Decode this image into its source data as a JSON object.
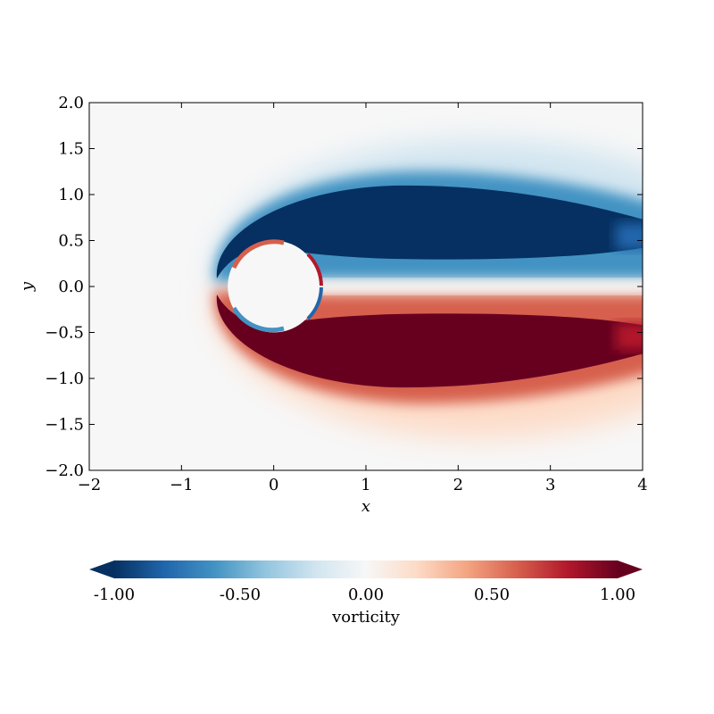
{
  "chart_data": {
    "type": "heatmap",
    "title": "",
    "xlabel": "x",
    "ylabel": "y",
    "xlim": [
      -2,
      4
    ],
    "ylim": [
      -2,
      2
    ],
    "xticks": [
      -2,
      -1,
      0,
      1,
      2,
      3,
      4
    ],
    "yticks": [
      -2.0,
      -1.5,
      -1.0,
      -0.5,
      0.0,
      0.5,
      1.0,
      1.5,
      2.0
    ],
    "xtick_labels": [
      "−2",
      "−1",
      "0",
      "1",
      "2",
      "3",
      "4"
    ],
    "ytick_labels": [
      "−2.0",
      "−1.5",
      "−1.0",
      "−0.5",
      "0.0",
      "0.5",
      "1.0",
      "1.5",
      "2.0"
    ],
    "obstacle": {
      "shape": "circle",
      "center": [
        0,
        0
      ],
      "radius": 0.5
    },
    "colorbar": {
      "label": "vorticity",
      "orientation": "horizontal",
      "placement": "bottom",
      "extend": "both",
      "vmin": -1.0,
      "vmax": 1.0,
      "ticks": [
        -1.0,
        -0.5,
        0.0,
        0.5,
        1.0
      ],
      "tick_labels": [
        "-1.00",
        "-0.50",
        "0.00",
        "0.50",
        "1.00"
      ],
      "colormap": "RdBu_r",
      "colors": [
        "#053061",
        "#2166ac",
        "#4393c3",
        "#92c5de",
        "#d1e5f0",
        "#f7f7f7",
        "#fddbc7",
        "#f4a582",
        "#d6604d",
        "#b2182b",
        "#67001f"
      ]
    },
    "features": [
      {
        "kind": "negative-vorticity-lobe",
        "sign": -1,
        "x_range": [
          -0.6,
          4
        ],
        "y_range": [
          0.3,
          1.1
        ]
      },
      {
        "kind": "positive-vorticity-lobe",
        "sign": 1,
        "x_range": [
          -0.6,
          4
        ],
        "y_range": [
          -1.1,
          -0.3
        ]
      }
    ]
  }
}
